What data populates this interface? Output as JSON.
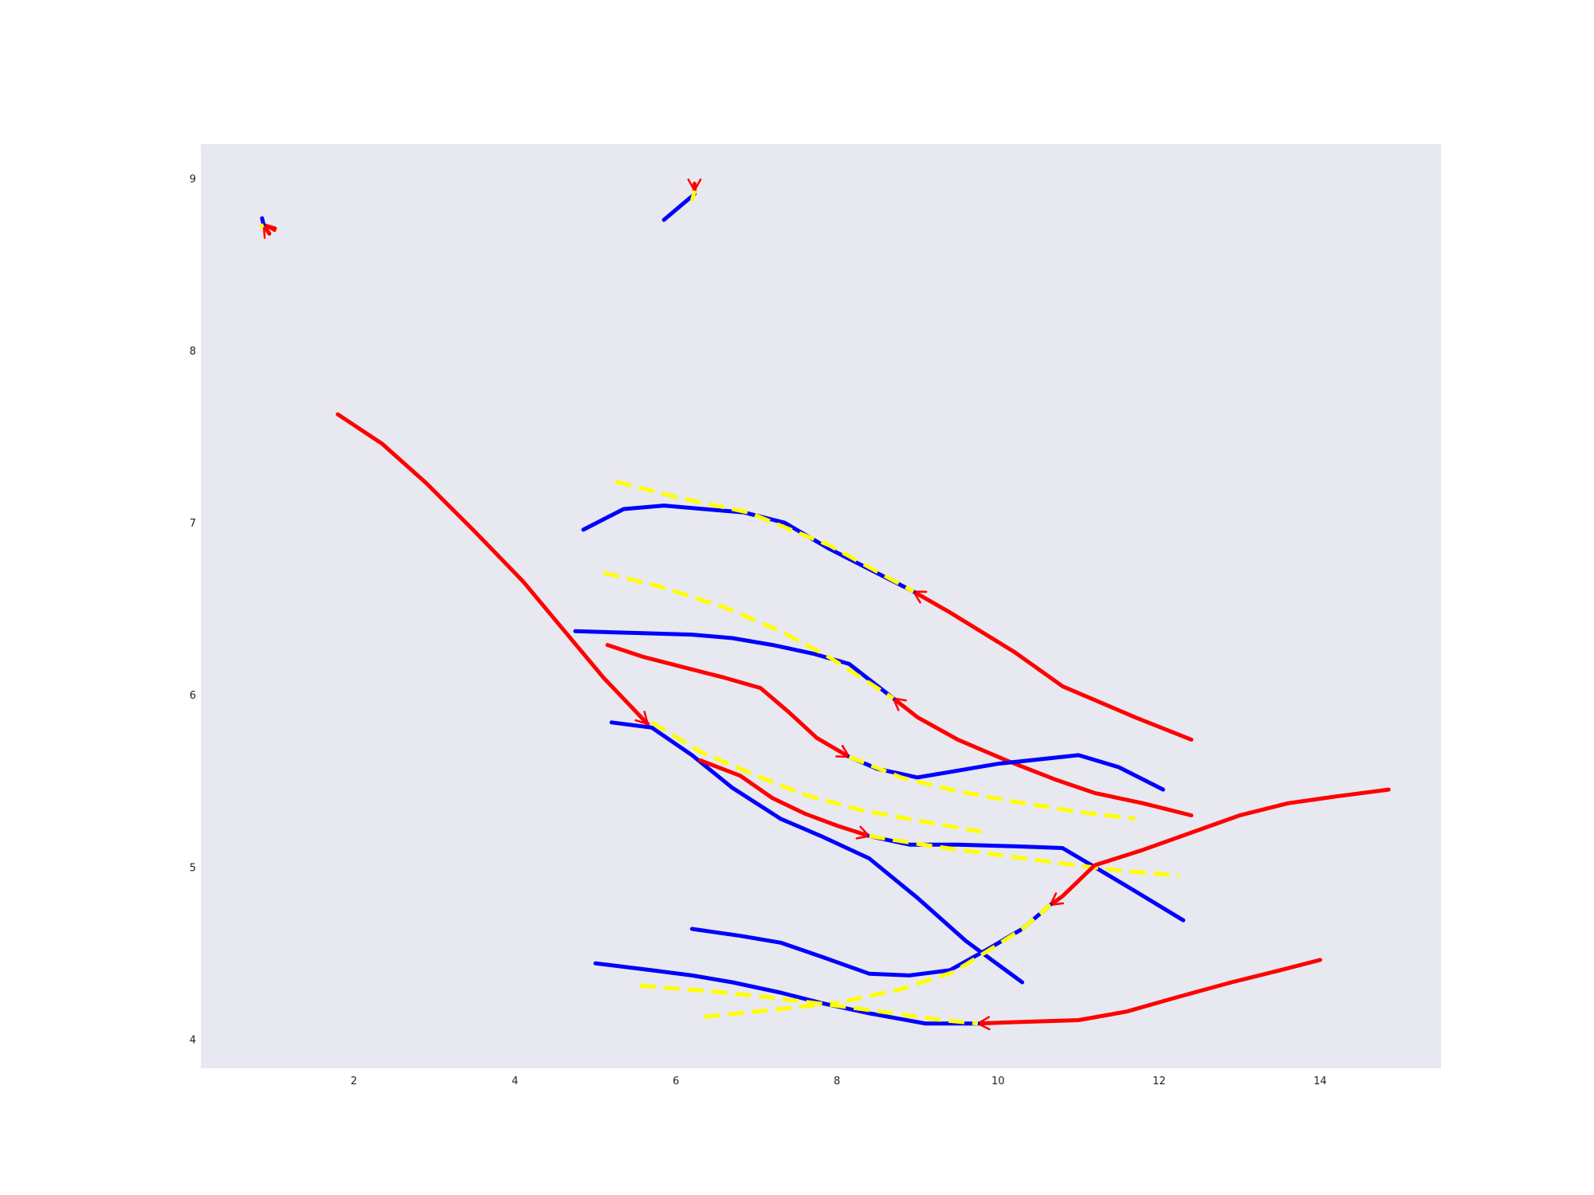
{
  "chart_data": {
    "type": "line",
    "title": "",
    "xlabel": "",
    "ylabel": "",
    "xlim": [
      0.1,
      15.5
    ],
    "ylim": [
      3.83,
      9.2
    ],
    "xticks": [
      "2",
      "4",
      "6",
      "8",
      "10",
      "12",
      "14"
    ],
    "yticks": [
      "4",
      "5",
      "6",
      "7",
      "8",
      "9"
    ],
    "grid": false,
    "legend": "none",
    "colors": {
      "background": "#ffffff",
      "plot_area": "#e8e8f0",
      "red": "#ff0000",
      "blue": "#0000ff",
      "yellow": "#ffff00"
    },
    "series": [
      {
        "color": "red",
        "style": "solid",
        "arrow_end": true,
        "points": [
          [
            1.8,
            7.63
          ],
          [
            2.35,
            7.46
          ],
          [
            2.9,
            7.23
          ],
          [
            3.5,
            6.95
          ],
          [
            4.1,
            6.66
          ],
          [
            4.6,
            6.38
          ],
          [
            5.1,
            6.1
          ],
          [
            5.65,
            5.83
          ]
        ]
      },
      {
        "color": "blue",
        "style": "solid",
        "arrow_end": false,
        "points": [
          [
            5.2,
            5.84
          ],
          [
            5.7,
            5.81
          ],
          [
            6.2,
            5.65
          ],
          [
            6.7,
            5.46
          ],
          [
            7.3,
            5.28
          ],
          [
            7.8,
            5.18
          ],
          [
            8.4,
            5.05
          ],
          [
            9.0,
            4.82
          ],
          [
            9.6,
            4.57
          ],
          [
            10.3,
            4.33
          ]
        ]
      },
      {
        "color": "yellow",
        "style": "dashed",
        "arrow_end": false,
        "points": [
          [
            5.7,
            5.84
          ],
          [
            6.3,
            5.67
          ],
          [
            7.0,
            5.53
          ],
          [
            7.6,
            5.42
          ],
          [
            8.3,
            5.33
          ],
          [
            9.0,
            5.27
          ],
          [
            9.85,
            5.2
          ]
        ]
      },
      {
        "color": "red",
        "style": "solid",
        "arrow_end": true,
        "points": [
          [
            12.4,
            5.74
          ],
          [
            11.7,
            5.87
          ],
          [
            10.8,
            6.05
          ],
          [
            10.2,
            6.25
          ],
          [
            9.4,
            6.48
          ],
          [
            8.95,
            6.6
          ]
        ]
      },
      {
        "color": "blue",
        "style": "solid",
        "arrow_end": false,
        "points": [
          [
            4.85,
            6.96
          ],
          [
            5.35,
            7.08
          ],
          [
            5.85,
            7.1
          ],
          [
            6.35,
            7.08
          ],
          [
            6.85,
            7.06
          ],
          [
            7.35,
            7.0
          ],
          [
            7.9,
            6.85
          ],
          [
            8.95,
            6.6
          ]
        ]
      },
      {
        "color": "yellow",
        "style": "dashed",
        "arrow_end": false,
        "points": [
          [
            5.25,
            7.24
          ],
          [
            6.0,
            7.15
          ],
          [
            6.9,
            7.06
          ],
          [
            7.9,
            6.87
          ],
          [
            8.95,
            6.6
          ]
        ]
      },
      {
        "color": "red",
        "style": "solid",
        "arrow_end": true,
        "points": [
          [
            12.4,
            5.3
          ],
          [
            11.8,
            5.37
          ],
          [
            11.2,
            5.43
          ],
          [
            10.7,
            5.51
          ],
          [
            10.1,
            5.62
          ],
          [
            9.5,
            5.74
          ],
          [
            9.0,
            5.87
          ],
          [
            8.7,
            5.98
          ]
        ]
      },
      {
        "color": "blue",
        "style": "solid",
        "arrow_end": false,
        "points": [
          [
            4.75,
            6.37
          ],
          [
            5.5,
            6.36
          ],
          [
            6.2,
            6.35
          ],
          [
            6.7,
            6.33
          ],
          [
            7.2,
            6.29
          ],
          [
            7.7,
            6.24
          ],
          [
            8.15,
            6.18
          ],
          [
            8.7,
            5.98
          ]
        ]
      },
      {
        "color": "yellow",
        "style": "dashed",
        "arrow_end": false,
        "points": [
          [
            5.1,
            6.71
          ],
          [
            5.8,
            6.63
          ],
          [
            6.6,
            6.51
          ],
          [
            7.3,
            6.37
          ],
          [
            7.9,
            6.22
          ],
          [
            8.7,
            5.98
          ]
        ]
      },
      {
        "color": "red",
        "style": "solid",
        "arrow_end": true,
        "points": [
          [
            5.15,
            6.29
          ],
          [
            5.6,
            6.22
          ],
          [
            6.1,
            6.16
          ],
          [
            6.6,
            6.1
          ],
          [
            7.05,
            6.04
          ],
          [
            7.4,
            5.9
          ],
          [
            7.75,
            5.75
          ],
          [
            8.15,
            5.64
          ]
        ]
      },
      {
        "color": "blue",
        "style": "solid",
        "arrow_end": false,
        "points": [
          [
            8.15,
            5.64
          ],
          [
            8.5,
            5.57
          ],
          [
            9.0,
            5.52
          ],
          [
            9.5,
            5.56
          ],
          [
            10.0,
            5.6
          ],
          [
            11.0,
            5.65
          ],
          [
            11.5,
            5.58
          ],
          [
            12.05,
            5.45
          ]
        ]
      },
      {
        "color": "yellow",
        "style": "dashed",
        "arrow_end": false,
        "points": [
          [
            8.15,
            5.64
          ],
          [
            8.8,
            5.52
          ],
          [
            9.5,
            5.44
          ],
          [
            10.2,
            5.38
          ],
          [
            11.0,
            5.32
          ],
          [
            11.7,
            5.28
          ]
        ]
      },
      {
        "color": "red",
        "style": "solid",
        "arrow_end": true,
        "points": [
          [
            6.3,
            5.62
          ],
          [
            6.8,
            5.53
          ],
          [
            7.2,
            5.4
          ],
          [
            7.6,
            5.31
          ],
          [
            8.0,
            5.24
          ],
          [
            8.4,
            5.18
          ]
        ]
      },
      {
        "color": "blue",
        "style": "solid",
        "arrow_end": false,
        "points": [
          [
            8.4,
            5.18
          ],
          [
            8.9,
            5.13
          ],
          [
            9.5,
            5.13
          ],
          [
            10.2,
            5.12
          ],
          [
            10.8,
            5.11
          ],
          [
            11.2,
            5.0
          ],
          [
            11.7,
            4.86
          ],
          [
            12.3,
            4.69
          ]
        ]
      },
      {
        "color": "yellow",
        "style": "dashed",
        "arrow_end": false,
        "points": [
          [
            8.4,
            5.18
          ],
          [
            9.2,
            5.12
          ],
          [
            10.0,
            5.07
          ],
          [
            10.8,
            5.02
          ],
          [
            11.5,
            4.98
          ],
          [
            12.25,
            4.95
          ]
        ]
      },
      {
        "color": "red",
        "style": "solid",
        "arrow_end": true,
        "points": [
          [
            14.85,
            5.45
          ],
          [
            14.2,
            5.41
          ],
          [
            13.6,
            5.37
          ],
          [
            13.0,
            5.3
          ],
          [
            12.4,
            5.2
          ],
          [
            11.8,
            5.1
          ],
          [
            11.2,
            5.01
          ],
          [
            10.8,
            4.83
          ],
          [
            10.65,
            4.78
          ]
        ]
      },
      {
        "color": "blue",
        "style": "solid",
        "arrow_end": false,
        "points": [
          [
            6.2,
            4.64
          ],
          [
            6.8,
            4.6
          ],
          [
            7.3,
            4.56
          ],
          [
            7.8,
            4.48
          ],
          [
            8.4,
            4.38
          ],
          [
            8.9,
            4.37
          ],
          [
            9.4,
            4.4
          ],
          [
            9.9,
            4.53
          ],
          [
            10.3,
            4.64
          ],
          [
            10.65,
            4.78
          ]
        ]
      },
      {
        "color": "yellow",
        "style": "dashed",
        "arrow_end": false,
        "points": [
          [
            6.35,
            4.13
          ],
          [
            7.2,
            4.17
          ],
          [
            8.0,
            4.21
          ],
          [
            8.8,
            4.29
          ],
          [
            9.45,
            4.39
          ],
          [
            9.9,
            4.52
          ],
          [
            10.3,
            4.64
          ],
          [
            10.65,
            4.78
          ]
        ]
      },
      {
        "color": "red",
        "style": "solid",
        "arrow_end": true,
        "points": [
          [
            14.0,
            4.46
          ],
          [
            13.5,
            4.4
          ],
          [
            12.9,
            4.33
          ],
          [
            12.2,
            4.24
          ],
          [
            11.6,
            4.16
          ],
          [
            11.0,
            4.11
          ],
          [
            10.3,
            4.1
          ],
          [
            9.75,
            4.09
          ]
        ]
      },
      {
        "color": "blue",
        "style": "solid",
        "arrow_end": false,
        "points": [
          [
            5.0,
            4.44
          ],
          [
            5.7,
            4.4
          ],
          [
            6.2,
            4.37
          ],
          [
            6.7,
            4.33
          ],
          [
            7.3,
            4.27
          ],
          [
            7.8,
            4.21
          ],
          [
            8.4,
            4.15
          ],
          [
            9.1,
            4.09
          ],
          [
            9.75,
            4.09
          ]
        ]
      },
      {
        "color": "yellow",
        "style": "dashed",
        "arrow_end": false,
        "points": [
          [
            5.55,
            4.31
          ],
          [
            6.4,
            4.28
          ],
          [
            7.2,
            4.24
          ],
          [
            7.9,
            4.2
          ],
          [
            8.7,
            4.15
          ],
          [
            9.3,
            4.11
          ],
          [
            9.75,
            4.09
          ]
        ]
      },
      {
        "color": "red",
        "style": "solid",
        "arrow_end": true,
        "points": [
          [
            0.95,
            8.68
          ],
          [
            0.88,
            8.73
          ]
        ]
      },
      {
        "color": "red",
        "style": "solid",
        "arrow_end": false,
        "points": [
          [
            0.88,
            8.73
          ],
          [
            1.02,
            8.71
          ]
        ]
      },
      {
        "color": "blue",
        "style": "solid",
        "arrow_end": false,
        "points": [
          [
            0.88,
            8.73
          ],
          [
            0.86,
            8.77
          ]
        ]
      },
      {
        "color": "yellow",
        "style": "dashed",
        "arrow_end": false,
        "points": [
          [
            0.88,
            8.73
          ],
          [
            0.83,
            8.72
          ]
        ]
      },
      {
        "color": "red",
        "style": "solid",
        "arrow_end": true,
        "points": [
          [
            6.23,
            8.97
          ],
          [
            6.23,
            8.93
          ]
        ]
      },
      {
        "color": "blue",
        "style": "solid",
        "arrow_end": false,
        "points": [
          [
            5.85,
            8.76
          ],
          [
            6.23,
            8.91
          ]
        ]
      },
      {
        "color": "yellow",
        "style": "dashed",
        "arrow_end": false,
        "points": [
          [
            6.2,
            8.87
          ],
          [
            6.23,
            8.93
          ]
        ]
      }
    ]
  }
}
